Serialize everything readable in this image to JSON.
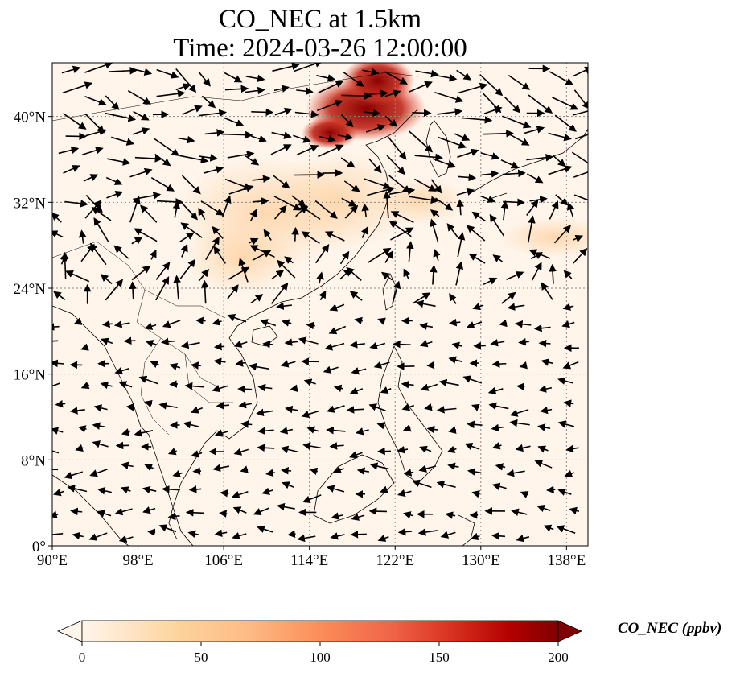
{
  "title": {
    "line1": "CO_NEC at 1.5km",
    "line2": "Time: 2024-03-26 12:00:00"
  },
  "map": {
    "lon_range": [
      90,
      140
    ],
    "lat_range": [
      0,
      45
    ],
    "x_ticks": [
      "90°E",
      "98°E",
      "106°E",
      "114°E",
      "122°E",
      "130°E",
      "138°E"
    ],
    "y_ticks": [
      "0°",
      "8°N",
      "16°N",
      "24°N",
      "32°N",
      "40°N"
    ],
    "gridlines": "dotted",
    "colormap": "OrRd",
    "background_color": "#fff5eb",
    "coastline_color": "#000000"
  },
  "colorbar": {
    "label": "CO_NEC (ppbv)",
    "ticks": [
      "0",
      "50",
      "100",
      "150",
      "200"
    ],
    "range": [
      0,
      200
    ],
    "extend": "both",
    "colors": [
      "#fff5eb",
      "#fdd49e",
      "#fdbb84",
      "#fc8d59",
      "#ef6548",
      "#d7301f",
      "#b30000",
      "#7f0000"
    ]
  }
}
